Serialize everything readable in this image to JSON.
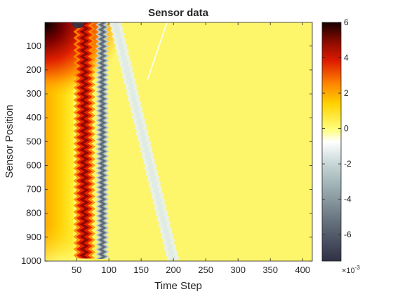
{
  "chart_data": {
    "type": "heatmap",
    "title": "Sensor data",
    "xlabel": "Time Step",
    "ylabel": "Sensor Position",
    "xlim": [
      1,
      415
    ],
    "ylim": [
      1,
      1000
    ],
    "y_direction": "reversed",
    "x_ticks": [
      50,
      100,
      150,
      200,
      250,
      300,
      350,
      400
    ],
    "y_ticks": [
      100,
      200,
      300,
      400,
      500,
      600,
      700,
      800,
      900,
      1000
    ],
    "colormap": "custom diverging (dark slate - white - yellow - red - black)",
    "colorbar": {
      "ticks": [
        -6,
        -4,
        -2,
        0,
        2,
        4,
        6
      ],
      "multiplier": "×10",
      "exponent": "-3",
      "limits": [
        -7.5,
        6
      ]
    },
    "features": [
      {
        "name": "initial hot region",
        "x_range": [
          1,
          40
        ],
        "y_range": [
          1,
          120
        ],
        "value_approx": 6
      },
      {
        "name": "main positive band",
        "x_center": 60,
        "width": 20,
        "value_approx": 4.5
      },
      {
        "name": "negative oscillating band",
        "x_center": 90,
        "width": 12,
        "value_approx": -4
      },
      {
        "name": "diagonal negative wave",
        "x_start": 110,
        "x_end": 200,
        "value_approx": -1
      },
      {
        "name": "background",
        "value_approx": 0.6
      }
    ]
  }
}
